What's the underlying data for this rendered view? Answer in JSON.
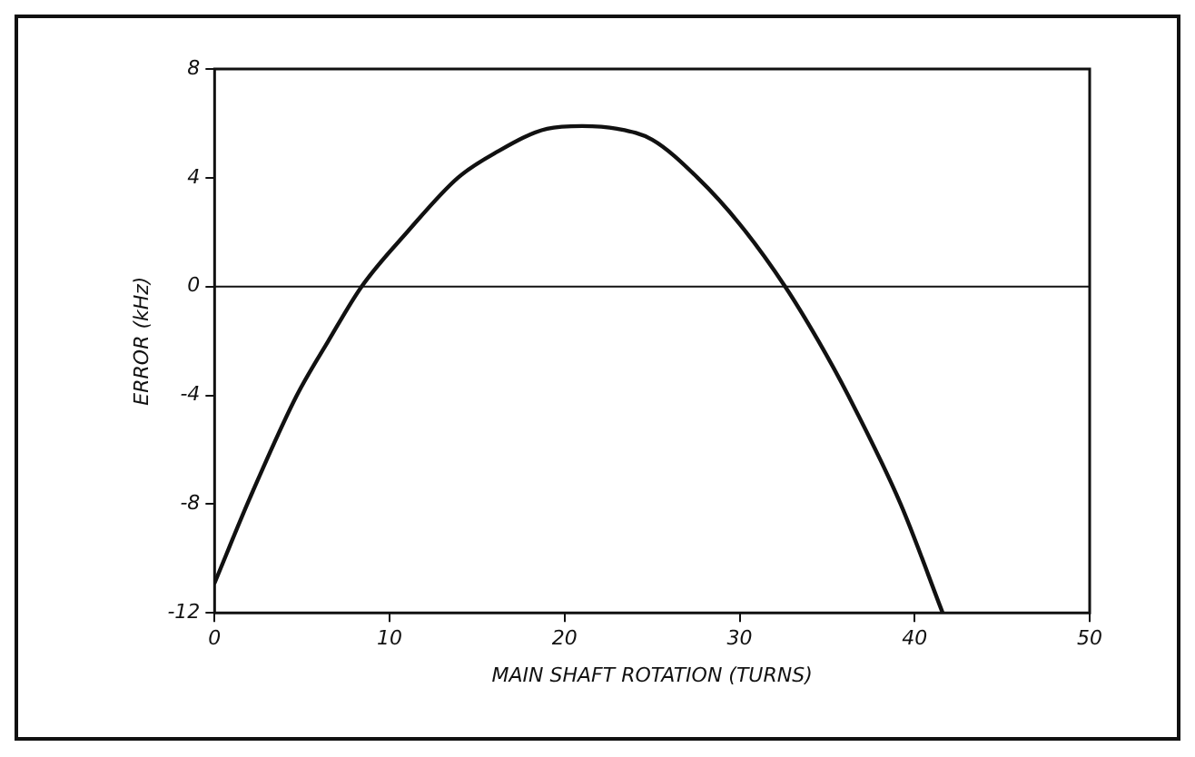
{
  "chart_data": {
    "type": "line",
    "xlabel": "MAIN SHAFT ROTATION (TURNS)",
    "ylabel": "ERROR (kHz)",
    "xlim": [
      0,
      50
    ],
    "xticks": [
      0,
      10,
      20,
      30,
      40,
      50
    ],
    "ylim": [
      -12,
      8
    ],
    "yticks": [
      -12,
      -8,
      -4,
      0,
      4,
      8
    ],
    "series": [
      {
        "color": "#111111",
        "x": [
          0,
          2,
          4.7,
          6.5,
          8.4,
          11,
          13.9,
          16,
          19,
          21,
          23,
          25,
          27.6,
          30,
          32.6,
          34.5,
          36.2,
          39.2,
          41.6
        ],
        "values": [
          -10.9,
          -7.8,
          -4,
          -2,
          0,
          2,
          4,
          4.9,
          5.8,
          5.9,
          5.8,
          5.4,
          4,
          2.3,
          0,
          -2,
          -4,
          -8,
          -12
        ]
      }
    ],
    "ref_lines": [
      {
        "axis": "y",
        "value": 0,
        "color": "#111111"
      }
    ],
    "grid": false,
    "legend": false,
    "marker": "none",
    "line_style": "solid"
  }
}
